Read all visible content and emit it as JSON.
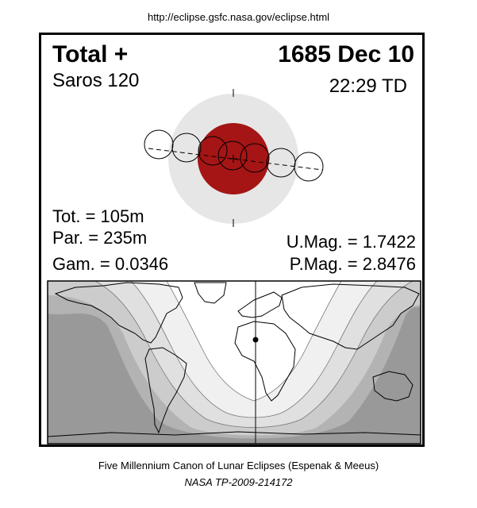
{
  "header": {
    "url": "http://eclipse.gsfc.nasa.gov/eclipse.html"
  },
  "eclipse": {
    "type": "Total  +",
    "date": "1685 Dec 10",
    "saros": "Saros 120",
    "time": "22:29 TD",
    "total_duration": "Tot. = 105m",
    "partial_duration": "Par. = 235m",
    "gamma": "Gam. = 0.0346",
    "umbral_magnitude": "U.Mag. = 1.7422",
    "penumbral_magnitude": "P.Mag. = 2.8476"
  },
  "colors": {
    "umbra": "#a51515",
    "penumbra": "#e6e6e6",
    "map_night": "#999999",
    "map_band_1": "#b3b3b3",
    "map_band_2": "#cccccc",
    "map_band_3": "#e0e0e0",
    "map_band_4": "#f0f0f0"
  },
  "footer": {
    "line1": "Five Millennium Canon of Lunar Eclipses (Espenak & Meeus)",
    "line2": "NASA TP-2009-214172"
  }
}
